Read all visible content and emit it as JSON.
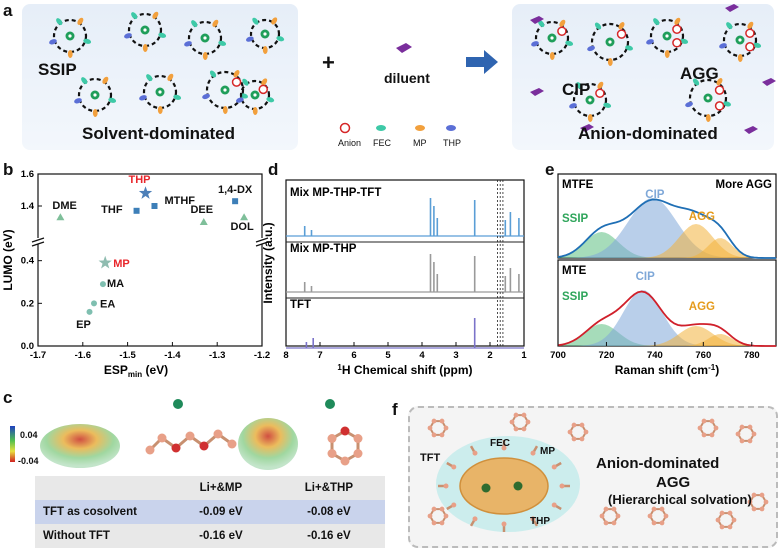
{
  "panel_a": {
    "label": "a",
    "ssip": "SSIP",
    "solvent_dominated": "Solvent-dominated",
    "plus": "+",
    "diluent": "diluent",
    "cip": "CIP",
    "agg": "AGG",
    "anion_dominated": "Anion-dominated",
    "legend": [
      "Anion",
      "FEC",
      "MP",
      "THP"
    ],
    "colors": {
      "anion": "#d62728",
      "fec": "#3ec9a7",
      "mp": "#f2a03d",
      "thp": "#5b6fd6",
      "diluent": "#7a2e9c",
      "li": "#1f9e5a"
    }
  },
  "panel_b": {
    "label": "b",
    "chart_data": {
      "type": "scatter",
      "xlabel": "ESPmin (eV)",
      "ylabel": "LUMO (eV)",
      "xlim": [
        -1.7,
        -1.2
      ],
      "xticks": [
        "-1.7",
        "-1.6",
        "-1.5",
        "-1.4",
        "-1.3",
        "-1.2"
      ],
      "yticks": [
        "0.0",
        "0.2",
        "0.4",
        "1.4",
        "1.6"
      ],
      "axis_break": true,
      "points": [
        {
          "label": "DME",
          "x": -1.65,
          "y": 1.33,
          "marker": "triangle",
          "color": "#7fbf9a"
        },
        {
          "label": "THF",
          "x": -1.48,
          "y": 1.37,
          "marker": "square",
          "color": "#3d7fb8"
        },
        {
          "label": "THP",
          "x": -1.46,
          "y": 1.48,
          "marker": "star",
          "color": "#4d7fb8",
          "highlight": "#e8262b"
        },
        {
          "label": "MTHF",
          "x": -1.44,
          "y": 1.4,
          "marker": "square",
          "color": "#3d7fb8"
        },
        {
          "label": "DEE",
          "x": -1.33,
          "y": 1.3,
          "marker": "triangle",
          "color": "#7fbf9a"
        },
        {
          "label": "1,4-DX",
          "x": -1.26,
          "y": 1.43,
          "marker": "square",
          "color": "#3d7fb8"
        },
        {
          "label": "DOL",
          "x": -1.24,
          "y": 1.33,
          "marker": "triangle",
          "color": "#7fbf9a"
        },
        {
          "label": "MP",
          "x": -1.55,
          "y": 0.39,
          "marker": "star",
          "color": "#8fbcb0",
          "highlight": "#e8262b"
        },
        {
          "label": "MA",
          "x": -1.555,
          "y": 0.29,
          "marker": "circle",
          "color": "#7fbfb0"
        },
        {
          "label": "EA",
          "x": -1.575,
          "y": 0.2,
          "marker": "circle",
          "color": "#7fbfb0"
        },
        {
          "label": "EP",
          "x": -1.585,
          "y": 0.16,
          "marker": "circle",
          "color": "#7fbfb0"
        }
      ]
    }
  },
  "panel_d": {
    "label": "d",
    "chart_data": {
      "type": "line",
      "xlabel": "1H Chemical shift (ppm)",
      "ylabel": "Intensity (a.u.)",
      "xlim": [
        8,
        1
      ],
      "xticks": [
        "8",
        "7",
        "6",
        "5",
        "4",
        "3",
        "2",
        "1"
      ],
      "series": [
        {
          "name": "Mix MP-THP-TFT",
          "color": "#5a9ed6"
        },
        {
          "name": "Mix MP-THP",
          "color": "#9a9a9a"
        },
        {
          "name": "TFT",
          "color": "#7b73c9"
        }
      ]
    }
  },
  "panel_e": {
    "label": "e",
    "chart_data": {
      "type": "area",
      "xlabel": "Raman shift (cm-1)",
      "xlim": [
        700,
        790
      ],
      "xticks": [
        "700",
        "720",
        "740",
        "760",
        "780"
      ],
      "subplots": [
        {
          "name": "MTFE",
          "annotation": "More AGG",
          "line_color": "#1f6fb5",
          "components": [
            "SSIP",
            "CIP",
            "AGG"
          ]
        },
        {
          "name": "MTE",
          "line_color": "#d0202b",
          "components": [
            "SSIP",
            "CIP",
            "AGG"
          ]
        }
      ],
      "component_colors": {
        "SSIP": "#5dbf82",
        "CIP": "#7fa8d8",
        "AGG": "#f2b33d"
      }
    }
  },
  "panel_c": {
    "label": "c",
    "scale_top": "0.04",
    "scale_bottom": "-0.04",
    "table": {
      "headers": [
        "",
        "Li+&MP",
        "Li+&THP"
      ],
      "rows": [
        [
          "TFT as cosolvent",
          "-0.09 eV",
          "-0.08 eV"
        ],
        [
          "Without TFT",
          "-0.16 eV",
          "-0.16 eV"
        ]
      ]
    }
  },
  "panel_f": {
    "label": "f",
    "tft": "TFT",
    "fec": "FEC",
    "mp": "MP",
    "thp": "THP",
    "title1": "Anion-dominated",
    "title2": "AGG",
    "title3": "(Hierarchical solvation)"
  }
}
